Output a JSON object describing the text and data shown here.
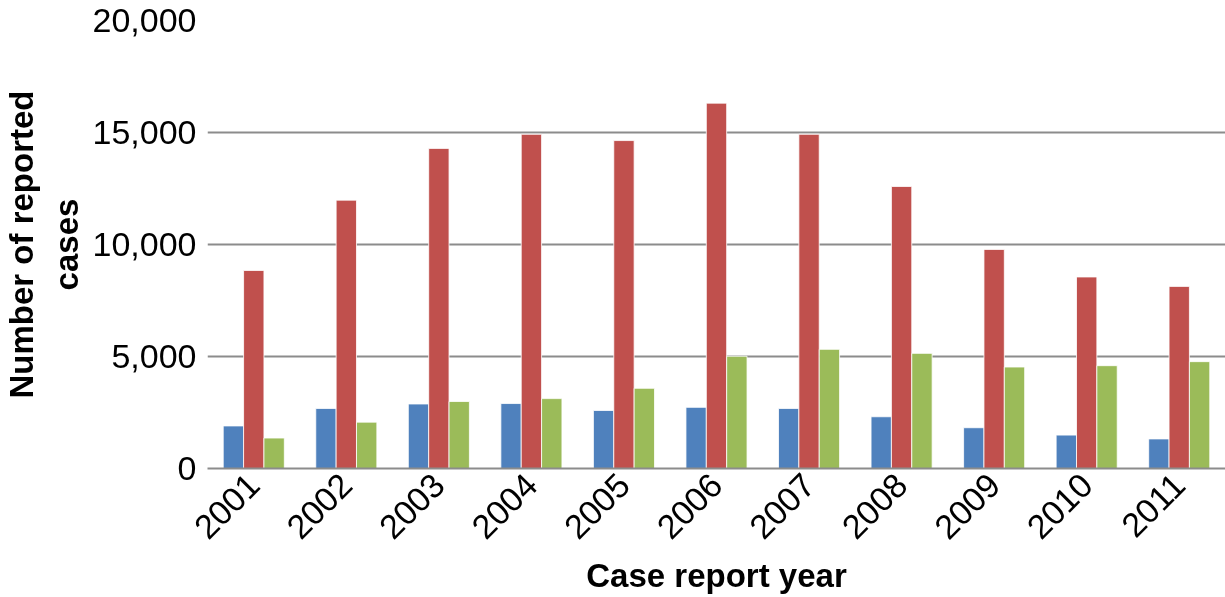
{
  "chart_data": {
    "type": "bar",
    "xlabel": "Case report year",
    "ylabel": "Number of reported cases",
    "categories": [
      "2001",
      "2002",
      "2003",
      "2004",
      "2005",
      "2006",
      "2007",
      "2008",
      "2009",
      "2010",
      "2011"
    ],
    "series": [
      {
        "color": "#4f81bd",
        "values": [
          1900,
          2680,
          2880,
          2900,
          2590,
          2730,
          2680,
          2310,
          1820,
          1490,
          1320
        ]
      },
      {
        "color": "#c0504d",
        "values": [
          8840,
          11980,
          14290,
          14920,
          14640,
          16310,
          14920,
          12590,
          9780,
          8550,
          8130
        ]
      },
      {
        "color": "#9bbb59",
        "values": [
          1360,
          2070,
          2990,
          3120,
          3580,
          5010,
          5320,
          5140,
          4530,
          4590,
          4770
        ]
      }
    ],
    "ylim": [
      0,
      20000
    ],
    "yticks": [
      {
        "value": 0,
        "label": "0"
      },
      {
        "value": 5000,
        "label": "5,000"
      },
      {
        "value": 10000,
        "label": "10,000"
      },
      {
        "value": 15000,
        "label": "15,000"
      },
      {
        "value": 20000,
        "label": "20,000"
      }
    ],
    "grid": "y"
  }
}
